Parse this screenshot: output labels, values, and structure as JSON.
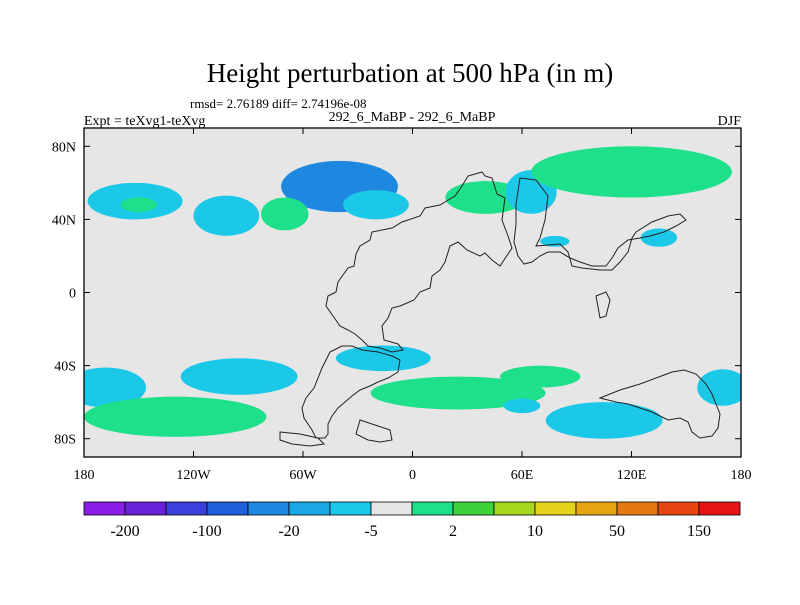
{
  "chart_data": {
    "type": "heatmap",
    "title": "Height perturbation at 500 hPa (in m)",
    "subtitle": "rmsd= 2.76189 diff= 2.74196e-08",
    "header_left": "Expt = teXvg1-teXvg",
    "header_center": "292_6_MaBP - 292_6_MaBP",
    "header_right": "DJF",
    "xlabel": "",
    "ylabel": "",
    "xlim": [
      -180,
      180
    ],
    "ylim": [
      -90,
      90
    ],
    "x_ticks": [
      {
        "value": -180,
        "label": "180"
      },
      {
        "value": -120,
        "label": "120W"
      },
      {
        "value": -60,
        "label": "60W"
      },
      {
        "value": 0,
        "label": "0"
      },
      {
        "value": 60,
        "label": "60E"
      },
      {
        "value": 120,
        "label": "120E"
      },
      {
        "value": 180,
        "label": "180"
      }
    ],
    "y_ticks": [
      {
        "value": 80,
        "label": "80N"
      },
      {
        "value": 40,
        "label": "40N"
      },
      {
        "value": 0,
        "label": "0"
      },
      {
        "value": -40,
        "label": "40S"
      },
      {
        "value": -80,
        "label": "80S"
      }
    ],
    "colorbar": {
      "labels": [
        "-200",
        "-100",
        "-20",
        "-5",
        "2",
        "10",
        "50",
        "150"
      ],
      "colors": [
        "#8a1ee6",
        "#6a22d8",
        "#3b3fdc",
        "#1e60dc",
        "#1e88e0",
        "#1aa8e6",
        "#1cc8e8",
        "#e6e6e6",
        "#1ee08a",
        "#3cd23c",
        "#a6d61e",
        "#e6d21a",
        "#e6a614",
        "#e67814",
        "#e64614",
        "#e61414"
      ]
    },
    "anomalies": [
      {
        "lon": -40,
        "lat": 58,
        "rx": 32,
        "ry": 14,
        "level": -20
      },
      {
        "lon": -20,
        "lat": 48,
        "rx": 18,
        "ry": 8,
        "level": -5
      },
      {
        "lon": -152,
        "lat": 50,
        "rx": 26,
        "ry": 10,
        "level": -5
      },
      {
        "lon": -150,
        "lat": 48,
        "rx": 10,
        "ry": 4,
        "level": 2
      },
      {
        "lon": -102,
        "lat": 42,
        "rx": 18,
        "ry": 11,
        "level": -5
      },
      {
        "lon": -70,
        "lat": 43,
        "rx": 13,
        "ry": 9,
        "level": 2
      },
      {
        "lon": 40,
        "lat": 52,
        "rx": 22,
        "ry": 9,
        "level": 2
      },
      {
        "lon": 65,
        "lat": 55,
        "rx": 14,
        "ry": 12,
        "level": -5
      },
      {
        "lon": 120,
        "lat": 66,
        "rx": 55,
        "ry": 14,
        "level": 2
      },
      {
        "lon": 135,
        "lat": 30,
        "rx": 10,
        "ry": 5,
        "level": -5
      },
      {
        "lon": 78,
        "lat": 28,
        "rx": 8,
        "ry": 3,
        "level": -5
      },
      {
        "lon": -168,
        "lat": -52,
        "rx": 22,
        "ry": 11,
        "level": -5
      },
      {
        "lon": -95,
        "lat": -46,
        "rx": 32,
        "ry": 10,
        "level": -5
      },
      {
        "lon": -16,
        "lat": -36,
        "rx": 26,
        "ry": 7,
        "level": -5
      },
      {
        "lon": 25,
        "lat": -55,
        "rx": 48,
        "ry": 9,
        "level": 2
      },
      {
        "lon": -130,
        "lat": -68,
        "rx": 50,
        "ry": 11,
        "level": 2
      },
      {
        "lon": 105,
        "lat": -70,
        "rx": 32,
        "ry": 10,
        "level": -5
      },
      {
        "lon": 170,
        "lat": -52,
        "rx": 14,
        "ry": 10,
        "level": -5
      },
      {
        "lon": 70,
        "lat": -46,
        "rx": 22,
        "ry": 6,
        "level": 2
      },
      {
        "lon": 60,
        "lat": -62,
        "rx": 10,
        "ry": 4,
        "level": -5
      }
    ]
  }
}
